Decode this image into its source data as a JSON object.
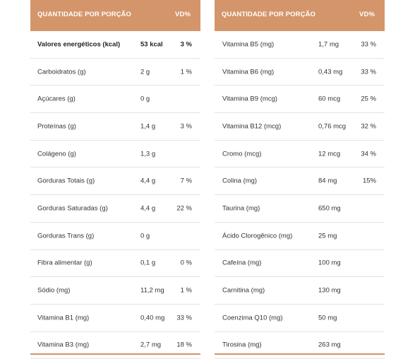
{
  "colors": {
    "header_bg": "#d4956a",
    "header_text": "#ffffff",
    "row_border": "#e4e4e4"
  },
  "left": {
    "header": {
      "name": "QUANTIDADE POR PORÇÃO",
      "vd": "VD%"
    },
    "rows": [
      {
        "name": "Valores energéticos (kcal)",
        "amount": "53 kcal",
        "vd": "3 %"
      },
      {
        "name": "Carboidratos (g)",
        "amount": "2 g",
        "vd": "1 %"
      },
      {
        "name": "Açúcares (g)",
        "amount": "0 g",
        "vd": ""
      },
      {
        "name": "Proteínas (g)",
        "amount": "1,4 g",
        "vd": "3 %"
      },
      {
        "name": "Colágeno (g)",
        "amount": "1,3 g",
        "vd": ""
      },
      {
        "name": "Gorduras Totais (g)",
        "amount": "4,4 g",
        "vd": "7 %"
      },
      {
        "name": "Gorduras Saturadas (g)",
        "amount": "4,4 g",
        "vd": "22 %"
      },
      {
        "name": "Gorduras Trans (g)",
        "amount": "0 g",
        "vd": ""
      },
      {
        "name": "Fibra alimentar (g)",
        "amount": "0,1 g",
        "vd": "0 %"
      },
      {
        "name": "Sódio (mg)",
        "amount": "11,2 mg",
        "vd": "1 %"
      },
      {
        "name": "Vitamina B1 (mg)",
        "amount": "0,40 mg",
        "vd": "33 %"
      },
      {
        "name": "Vitamina B3 (mg)",
        "amount": "2,7 mg",
        "vd": "18 %"
      }
    ]
  },
  "right": {
    "header": {
      "name": "QUANTIDADE POR PORÇÃO",
      "vd": "VD%"
    },
    "rows": [
      {
        "name": "Vitamina B5 (mg)",
        "amount": "1,7 mg",
        "vd": "33 %"
      },
      {
        "name": "Vitamina B6 (mg)",
        "amount": "0,43 mg",
        "vd": "33 %"
      },
      {
        "name": "Vitamina B9 (mcg)",
        "amount": "60 mcg",
        "vd": "25 %"
      },
      {
        "name": "Vitamina B12 (mcg)",
        "amount": "0,76 mcg",
        "vd": "32 %"
      },
      {
        "name": "Cromo (mcg)",
        "amount": "12 mcg",
        "vd": "34 %"
      },
      {
        "name": "Colina (mg)",
        "amount": "84 mg",
        "vd": "15%"
      },
      {
        "name": "Taurina (mg)",
        "amount": "650 mg",
        "vd": ""
      },
      {
        "name": "Ácido Clorogênico (mg)",
        "amount": "25 mg",
        "vd": ""
      },
      {
        "name": "Cafeína (mg)",
        "amount": "100 mg",
        "vd": ""
      },
      {
        "name": "Carnitina (mg)",
        "amount": "130 mg",
        "vd": ""
      },
      {
        "name": "Coenzima Q10 (mg)",
        "amount": "50 mg",
        "vd": ""
      },
      {
        "name": "Tirosina (mg)",
        "amount": "263 mg",
        "vd": ""
      }
    ]
  }
}
